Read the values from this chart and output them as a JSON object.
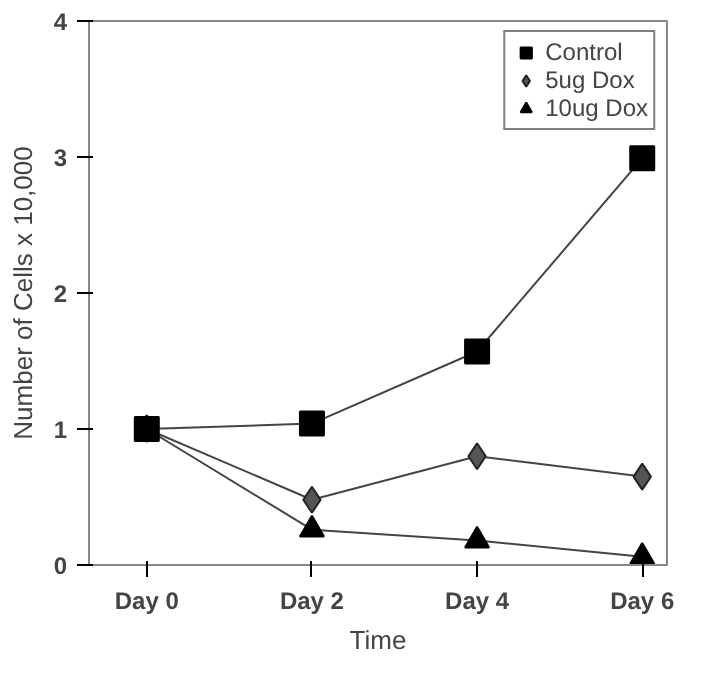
{
  "chart_data": {
    "type": "line",
    "xlabel": "Time",
    "ylabel": "Number of Cells x 10,000",
    "categories": [
      "Day 0",
      "Day 2",
      "Day 4",
      "Day 6"
    ],
    "ylim": [
      0,
      4
    ],
    "yticks": [
      0,
      1,
      2,
      3,
      4
    ],
    "grid": false,
    "legend": "top right",
    "series": [
      {
        "name": "Control",
        "color": "#000000",
        "marker": "square",
        "values": [
          1,
          1.04,
          1.57,
          2.99
        ]
      },
      {
        "name": "5ug Dox",
        "color": "#555555",
        "marker": "diamond",
        "values": [
          1,
          0.48,
          0.8,
          0.65
        ]
      },
      {
        "name": "10ug Dox",
        "color": "#000000",
        "marker": "triangle",
        "values": [
          1,
          0.26,
          0.18,
          0.06
        ]
      }
    ]
  }
}
